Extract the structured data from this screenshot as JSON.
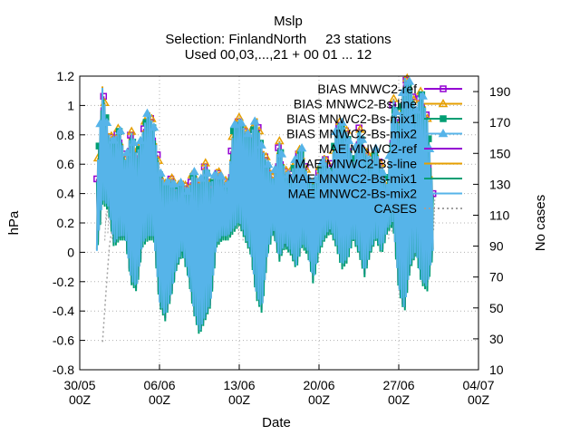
{
  "chart_data": {
    "type": "line",
    "title": "Mslp",
    "subtitle_1": "Selection: FinlandNorth     23 stations",
    "subtitle_2": "Used 00,03,...,21 + 00 01 ... 12",
    "xlabel": "Date",
    "ylabel": "hPa",
    "y2label": "No cases",
    "ylim": [
      -0.8,
      1.2
    ],
    "y2lim": [
      10,
      200
    ],
    "yticks": [
      "-0.8",
      "-0.6",
      "-0.4",
      "-0.2",
      "0",
      "0.2",
      "0.4",
      "0.6",
      "0.8",
      "1",
      "1.2"
    ],
    "y2ticks": [
      "10",
      "30",
      "50",
      "70",
      "90",
      "110",
      "130",
      "150",
      "170",
      "190"
    ],
    "xticks": [
      {
        "date": "30/05",
        "time": "00Z"
      },
      {
        "date": "06/06",
        "time": "00Z"
      },
      {
        "date": "13/06",
        "time": "00Z"
      },
      {
        "date": "20/06",
        "time": "00Z"
      },
      {
        "date": "27/06",
        "time": "00Z"
      },
      {
        "date": "04/07",
        "time": "00Z"
      }
    ],
    "xlim": [
      "30/05 00Z",
      "04/07 00Z"
    ],
    "grid": true,
    "legend_position": "top-right",
    "envelope_days": [
      1.5,
      2.0,
      2.5,
      3.0,
      3.5,
      4.0,
      4.5,
      5.0,
      5.5,
      6.0,
      6.5,
      7.0,
      7.5,
      8.0,
      8.5,
      9.0,
      9.5,
      10.0,
      10.5,
      11.0,
      11.5,
      12.0,
      12.5,
      13.0,
      13.5,
      14.0,
      14.5,
      15.0,
      15.5,
      16.0,
      16.5,
      17.0,
      17.5,
      18.0,
      18.5,
      19.0,
      19.5,
      20.0,
      20.5,
      21.0,
      21.5,
      22.0,
      22.5,
      23.0,
      23.5,
      24.0,
      24.5,
      25.0,
      25.5,
      26.0,
      26.5,
      27.0,
      27.5,
      28.0,
      28.5,
      29.0,
      29.5,
      30.0,
      30.5,
      31.0
    ],
    "envelope_high": [
      0.5,
      1.12,
      0.8,
      0.75,
      0.85,
      0.6,
      0.82,
      0.65,
      0.8,
      0.96,
      0.85,
      0.55,
      0.45,
      0.5,
      0.42,
      0.48,
      0.4,
      0.55,
      0.45,
      0.6,
      0.45,
      0.55,
      0.5,
      0.45,
      0.85,
      0.9,
      0.82,
      0.78,
      0.92,
      0.7,
      0.6,
      0.48,
      0.75,
      0.55,
      0.5,
      0.65,
      0.7,
      0.5,
      0.45,
      0.55,
      0.65,
      0.5,
      0.85,
      0.88,
      0.8,
      0.6,
      0.85,
      0.7,
      0.6,
      0.7,
      0.55,
      0.45,
      1.05,
      0.85,
      1.18,
      1.15,
      0.95,
      1.1,
      0.9,
      0.4
    ],
    "envelope_low": [
      0.0,
      0.35,
      0.3,
      0.05,
      0.1,
      0.1,
      -0.2,
      -0.25,
      0.05,
      0.1,
      0.1,
      -0.35,
      -0.45,
      -0.3,
      -0.1,
      0.0,
      -0.15,
      -0.4,
      -0.55,
      -0.45,
      -0.35,
      0.05,
      0.1,
      0.1,
      0.15,
      0.2,
      0.1,
      0.0,
      -0.3,
      -0.4,
      0.0,
      0.15,
      -0.05,
      0.05,
      0.0,
      -0.1,
      0.05,
      0.0,
      -0.2,
      0.0,
      0.1,
      0.15,
      0.05,
      -0.1,
      -0.05,
      0.1,
      0.0,
      -0.15,
      0.0,
      0.1,
      0.0,
      0.15,
      0.2,
      -0.25,
      -0.4,
      -0.1,
      0.0,
      -0.2,
      -0.25,
      0.0
    ],
    "cases_days": [
      2.0,
      2.3,
      2.6,
      3.0,
      40.0
    ],
    "cases_values": [
      28,
      60,
      90,
      110,
      110
    ],
    "series": [
      {
        "name": "BIAS MNWC2-ref",
        "color": "#9400d3",
        "marker": "square",
        "offset": 0.0
      },
      {
        "name": "BIAS MNWC2-Bs-line",
        "color": "#e69f00",
        "marker": "triangle",
        "offset": 0.02
      },
      {
        "name": "BIAS MNWC2-Bs-mix1",
        "color": "#009e73",
        "marker": "square-filled",
        "offset": -0.02
      },
      {
        "name": "BIAS MNWC2-Bs-mix2",
        "color": "#56b4e9",
        "marker": "triangle-filled",
        "offset": 0.01
      },
      {
        "name": "MAE MNWC2-ref",
        "color": "#9400d3",
        "marker": "none",
        "offset": 0.0
      },
      {
        "name": "MAE MNWC2-Bs-line",
        "color": "#e69f00",
        "marker": "none",
        "offset": 0.0
      },
      {
        "name": "MAE MNWC2-Bs-mix1",
        "color": "#009e73",
        "marker": "none",
        "offset": 0.0
      },
      {
        "name": "MAE MNWC2-Bs-mix2",
        "color": "#56b4e9",
        "marker": "none",
        "offset": 0.0
      },
      {
        "name": "CASES",
        "color": "#a0a0a0",
        "marker": "none",
        "offset": 0.0
      }
    ]
  }
}
